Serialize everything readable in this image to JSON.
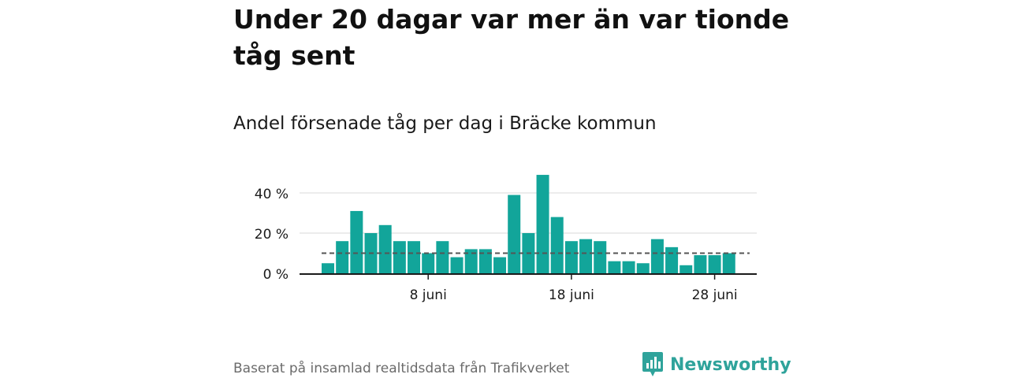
{
  "title": "Under 20 dagar var mer än var tionde tåg sent",
  "subtitle": "Andel försenade tåg per dag i Bräcke kommun",
  "source": "Baserat på insamlad realtidsdata från Trafikverket",
  "brand": {
    "name": "Newsworthy",
    "color": "#2fa39b",
    "icon": "newsworthy-logo-icon"
  },
  "colors": {
    "bar": "#12a59a",
    "reference_line": "#555555",
    "grid": "#d9d9d9",
    "axis": "#1a1a1a"
  },
  "chart_data": {
    "type": "bar",
    "x": [
      "1 juni",
      "2 juni",
      "3 juni",
      "4 juni",
      "5 juni",
      "6 juni",
      "7 juni",
      "8 juni",
      "9 juni",
      "10 juni",
      "11 juni",
      "12 juni",
      "13 juni",
      "14 juni",
      "15 juni",
      "16 juni",
      "17 juni",
      "18 juni",
      "19 juni",
      "20 juni",
      "21 juni",
      "22 juni",
      "23 juni",
      "24 juni",
      "25 juni",
      "26 juni",
      "27 juni",
      "28 juni",
      "29 juni",
      "30 juni"
    ],
    "values": [
      5,
      16,
      31,
      20,
      24,
      16,
      16,
      10,
      16,
      8,
      12,
      12,
      8,
      39,
      20,
      49,
      28,
      16,
      17,
      16,
      6,
      6,
      5,
      17,
      13,
      4,
      9,
      9,
      10,
      0
    ],
    "value_unit": "%",
    "reference_line": 10,
    "ylim": [
      0,
      50
    ],
    "yticks": [
      0,
      20,
      40
    ],
    "ytick_labels": [
      "0 %",
      "20 %",
      "40 %"
    ],
    "xticks": [
      "8 juni",
      "18 juni",
      "28 juni"
    ],
    "grid": true,
    "xlabel": "",
    "ylabel": ""
  }
}
